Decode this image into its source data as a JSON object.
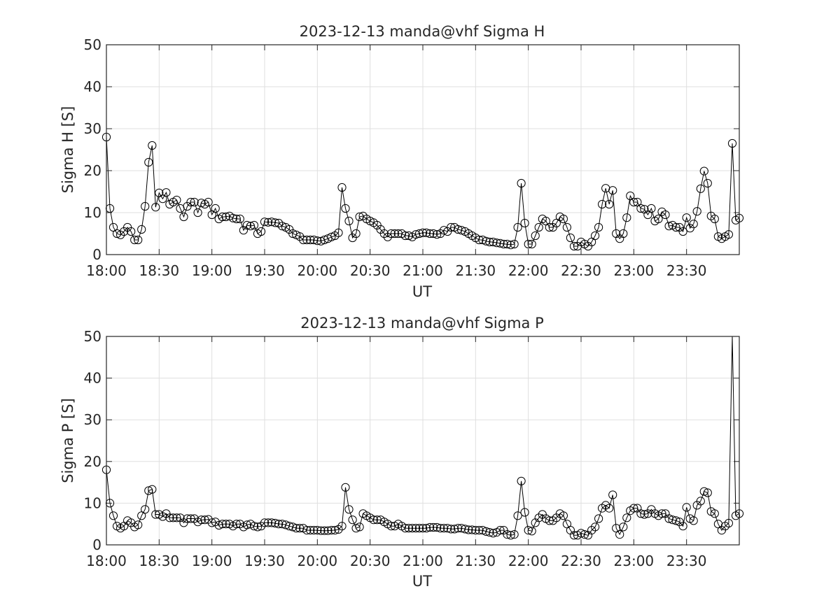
{
  "chart_data": [
    {
      "type": "line",
      "title": "2023-12-13  manda@vhf Sigma H",
      "xlabel": "UT",
      "ylabel": "Sigma H [S]",
      "xlim": [
        "18:00",
        "24:00"
      ],
      "ylim": [
        0,
        50
      ],
      "yticks": [
        "0",
        "10",
        "20",
        "30",
        "40",
        "50"
      ],
      "xticks": [
        "18:00",
        "18:30",
        "19:00",
        "19:30",
        "20:00",
        "20:30",
        "21:00",
        "21:30",
        "22:00",
        "22:30",
        "23:00",
        "23:30"
      ],
      "grid": true,
      "line_color": "#000000",
      "marker": "circle",
      "x_step_minutes": 2,
      "x_start": "18:00",
      "values": [
        28,
        11,
        6.5,
        5,
        4.7,
        5.5,
        6.5,
        5.5,
        3.5,
        3.5,
        6,
        11.5,
        22,
        26,
        11.3,
        14.7,
        13.3,
        14.8,
        12,
        12.5,
        13,
        11,
        9,
        11.5,
        12.5,
        12.5,
        10,
        12.3,
        12,
        12.5,
        9.5,
        11,
        8.5,
        9,
        9,
        9.2,
        8.7,
        8.5,
        8.5,
        5.8,
        7,
        6.8,
        7,
        5,
        5.5,
        7.8,
        7.7,
        7.8,
        7.6,
        7.5,
        6.8,
        6.5,
        6,
        5,
        4.7,
        4.3,
        3.5,
        3.5,
        3.5,
        3.5,
        3.3,
        3.2,
        3.5,
        3.8,
        4.2,
        4.5,
        5.2,
        16,
        11,
        8,
        4,
        5,
        9,
        9.2,
        8.5,
        8,
        7.6,
        7,
        6,
        5,
        4.2,
        5,
        5,
        5,
        5,
        4.5,
        4.5,
        4.2,
        4.8,
        5,
        5.2,
        5.2,
        5,
        5,
        4.8,
        5,
        5.8,
        5.5,
        6.5,
        6.5,
        6,
        5.8,
        5.5,
        5,
        4.5,
        4,
        3.5,
        3.5,
        3.2,
        3,
        3,
        2.8,
        2.7,
        2.5,
        2.5,
        2.3,
        2.5,
        6.5,
        17,
        7.5,
        2.5,
        2.5,
        4.5,
        6.5,
        8.5,
        8,
        6.5,
        6.5,
        7.5,
        9,
        8.5,
        6.5,
        4,
        2,
        2,
        3,
        2.5,
        2,
        3,
        4.5,
        6.5,
        12,
        15.8,
        12,
        15.3,
        5,
        3.8,
        5,
        8.8,
        14,
        12.5,
        12.5,
        11,
        10.8,
        9.5,
        11,
        8,
        8.5,
        10.2,
        9.5,
        6.8,
        7,
        6.5,
        6.5,
        5.5,
        8.8,
        6.3,
        7.3,
        10.3,
        15.7,
        19.9,
        17,
        9.2,
        8.5,
        4.3,
        3.8,
        4.3,
        4.8,
        26.5,
        8.2,
        8.7
      ]
    },
    {
      "type": "line",
      "title": "2023-12-13  manda@vhf Sigma P",
      "xlabel": "UT",
      "ylabel": "Sigma P [S]",
      "xlim": [
        "18:00",
        "24:00"
      ],
      "ylim": [
        0,
        50
      ],
      "yticks": [
        "0",
        "10",
        "20",
        "30",
        "40",
        "50"
      ],
      "xticks": [
        "18:00",
        "18:30",
        "19:00",
        "19:30",
        "20:00",
        "20:30",
        "21:00",
        "21:30",
        "22:00",
        "22:30",
        "23:00",
        "23:30"
      ],
      "grid": true,
      "line_color": "#000000",
      "marker": "circle",
      "x_step_minutes": 2,
      "x_start": "18:00",
      "values": [
        18,
        10,
        7,
        4.5,
        4,
        4.5,
        5.8,
        5.3,
        4.3,
        4.8,
        7,
        8.5,
        13,
        13.3,
        7.3,
        7.3,
        6.8,
        7.5,
        6.5,
        6.5,
        6.5,
        6.5,
        5.3,
        6.3,
        6.3,
        6.3,
        5.5,
        6,
        6,
        6.1,
        5.3,
        5.5,
        4.7,
        5,
        5,
        5,
        4.5,
        5,
        5,
        4.3,
        4.8,
        5,
        4.5,
        4.3,
        4.5,
        5.3,
        5.3,
        5.3,
        5.2,
        5,
        5,
        4.8,
        4.5,
        4.3,
        4,
        4,
        4,
        3.5,
        3.5,
        3.5,
        3.5,
        3.4,
        3.4,
        3.4,
        3.5,
        3.5,
        3.7,
        4.5,
        13.8,
        8.5,
        6,
        4,
        4.3,
        7.5,
        7,
        6.5,
        6,
        6,
        6,
        5.5,
        5,
        4.5,
        4.5,
        5,
        4.5,
        4,
        4,
        4,
        4,
        4,
        4,
        4,
        4.2,
        4.2,
        4.2,
        4,
        4,
        4,
        3.8,
        3.8,
        4,
        4,
        3.8,
        3.6,
        3.6,
        3.5,
        3.5,
        3.5,
        3.2,
        3,
        2.8,
        3,
        3.5,
        3.5,
        2.5,
        2.3,
        2.5,
        7,
        15.3,
        7.8,
        3.5,
        3.3,
        5.3,
        6.5,
        7.3,
        6.3,
        5.8,
        5.8,
        6.5,
        7.5,
        7,
        5,
        3.5,
        2.3,
        2.3,
        2.8,
        2.5,
        2.3,
        3.5,
        4.3,
        6.3,
        8.8,
        9.5,
        8.8,
        12,
        4,
        2.5,
        4.3,
        6.5,
        8.2,
        8.8,
        8.8,
        7.5,
        7.3,
        7.5,
        8.5,
        7.5,
        7,
        7.5,
        7.5,
        6.3,
        6,
        5.8,
        5.5,
        4.5,
        9,
        6.3,
        5.8,
        9.5,
        10.5,
        12.8,
        12.5,
        8,
        7.5,
        5,
        3.5,
        4.5,
        5.2,
        50,
        7,
        7.5
      ]
    }
  ]
}
